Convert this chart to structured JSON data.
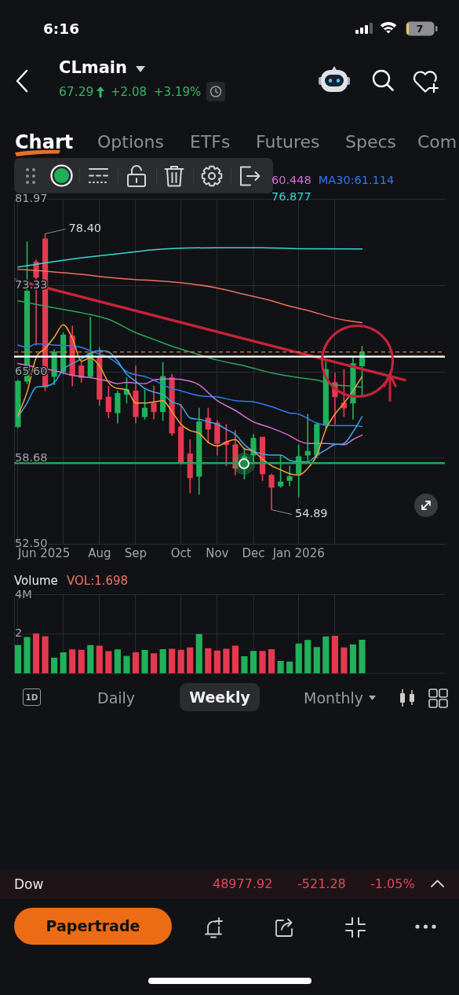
{
  "chart_data": [
    {
      "type": "candlestick",
      "title": "CLmain",
      "annotations": [
        "6:16",
        "7",
        "67.29",
        "+2.08",
        "+3.19%",
        "Chart",
        "Options",
        "ETFs",
        "Futures",
        "Specs",
        "Com",
        {
          "text": "78.40",
          "x": "2025-06-23",
          "y": 78.4
        },
        {
          "text": "54.89",
          "x": "2025-12-15",
          "y": 54.89
        }
      ],
      "x": [
        "2025-06-02",
        "2025-06-09",
        "2025-06-16",
        "2025-06-23",
        "2025-06-30",
        "2025-07-07",
        "2025-07-14",
        "2025-07-21",
        "2025-07-28",
        "2025-08-04",
        "2025-08-11",
        "2025-08-18",
        "2025-08-25",
        "2025-09-01",
        "2025-09-08",
        "2025-09-15",
        "2025-09-22",
        "2025-09-29",
        "2025-10-06",
        "2025-10-13",
        "2025-10-20",
        "2025-10-27",
        "2025-11-03",
        "2025-11-10",
        "2025-11-17",
        "2025-11-24",
        "2025-12-01",
        "2025-12-08",
        "2025-12-15",
        "2025-12-22",
        "2025-12-29",
        "2026-01-05",
        "2026-01-12",
        "2026-01-19",
        "2026-01-26",
        "2026-02-02",
        "2026-02-09",
        "2026-02-16",
        "2026-02-23"
      ],
      "ohlc": [
        [
          61.1,
          64.9,
          61.0,
          64.8
        ],
        [
          64.8,
          77.6,
          64.6,
          72.8
        ],
        [
          75.6,
          75.8,
          67.9,
          74.1
        ],
        [
          77.9,
          78.4,
          64.0,
          64.3
        ],
        [
          65.2,
          67.5,
          64.5,
          67.3
        ],
        [
          65.6,
          69.0,
          65.4,
          68.8
        ],
        [
          68.7,
          69.6,
          64.4,
          65.3
        ],
        [
          66.1,
          66.5,
          64.7,
          65.1
        ],
        [
          65.2,
          70.4,
          65.1,
          67.2
        ],
        [
          66.9,
          67.7,
          62.8,
          63.3
        ],
        [
          63.5,
          64.4,
          61.8,
          62.3
        ],
        [
          62.2,
          64.0,
          61.4,
          63.8
        ],
        [
          63.7,
          65.1,
          63.0,
          64.1
        ],
        [
          64.0,
          66.1,
          61.4,
          61.9
        ],
        [
          61.9,
          64.1,
          61.7,
          62.6
        ],
        [
          63.0,
          64.4,
          61.7,
          62.3
        ],
        [
          62.3,
          66.4,
          61.6,
          65.2
        ],
        [
          65.1,
          65.4,
          60.4,
          60.6
        ],
        [
          61.1,
          62.9,
          58.2,
          58.3
        ],
        [
          59.0,
          60.1,
          56.1,
          57.2
        ],
        [
          57.3,
          62.6,
          56.0,
          61.5
        ],
        [
          61.8,
          62.6,
          59.8,
          60.9
        ],
        [
          61.4,
          61.6,
          58.9,
          59.8
        ],
        [
          59.9,
          61.3,
          58.1,
          59.7
        ],
        [
          59.7,
          60.8,
          57.4,
          57.9
        ],
        [
          57.9,
          59.4,
          57.1,
          58.8
        ],
        [
          58.9,
          60.5,
          58.3,
          60.2
        ],
        [
          60.3,
          60.3,
          57.0,
          57.5
        ],
        [
          57.4,
          57.5,
          54.89,
          56.5
        ],
        [
          56.6,
          58.9,
          56.5,
          56.9
        ],
        [
          57.0,
          58.1,
          56.6,
          57.3
        ],
        [
          57.5,
          59.7,
          55.8,
          58.8
        ],
        [
          58.9,
          62.1,
          58.5,
          59.2
        ],
        [
          58.9,
          61.4,
          58.7,
          61.3
        ],
        [
          61.2,
          66.5,
          60.9,
          65.8
        ],
        [
          64.7,
          65.5,
          61.3,
          63.5
        ],
        [
          63.0,
          65.8,
          61.9,
          62.6
        ],
        [
          63.0,
          66.8,
          61.7,
          66.3
        ],
        [
          66.1,
          67.8,
          63.6,
          67.29
        ]
      ],
      "colors": [
        "#20b15a",
        "#20b15a",
        "#e63950",
        "#e63950",
        "#20b15a",
        "#20b15a",
        "#e63950",
        "#e63950",
        "#20b15a",
        "#e63950",
        "#e63950",
        "#20b15a",
        "#20b15a",
        "#e63950",
        "#20b15a",
        "#e63950",
        "#20b15a",
        "#e63950",
        "#e63950",
        "#e63950",
        "#20b15a",
        "#e63950",
        "#e63950",
        "#e63950",
        "#e63950",
        "#20b15a",
        "#20b15a",
        "#e63950",
        "#e63950",
        "#20b15a",
        "#20b15a",
        "#20b15a",
        "#20b15a",
        "#20b15a",
        "#20b15a",
        "#e63950",
        "#e63950",
        "#20b15a",
        "#20b15a"
      ],
      "series": [
        {
          "type": "line",
          "color": "#f5a03a",
          "values": [
            62.0,
            63.9,
            66.8,
            67.6,
            68.6,
            69.7,
            68.5,
            66.5,
            66.8,
            66.1,
            64.7,
            64.2,
            64.1,
            63.0,
            63.0,
            63.1,
            63.2,
            62.3,
            61.3,
            60.8,
            60.6,
            59.9,
            59.6,
            59.9,
            60.1,
            59.4,
            59.2,
            58.6,
            58.1,
            57.8,
            57.5,
            57.4,
            57.9,
            58.9,
            60.9,
            62.1,
            63.0,
            64.0,
            65.2
          ]
        },
        {
          "type": "line",
          "color": "#38a8e8",
          "values": [
            61.9,
            63.0,
            64.3,
            64.4,
            64.7,
            65.8,
            66.3,
            66.7,
            67.2,
            67.4,
            67.3,
            66.5,
            65.4,
            64.8,
            64.2,
            63.9,
            63.7,
            63.1,
            62.8,
            61.8,
            61.7,
            61.5,
            61.3,
            60.9,
            60.5,
            59.7,
            59.2,
            59.0,
            58.9,
            58.9,
            58.5,
            58.4,
            58.4,
            58.9,
            59.3,
            59.7,
            59.8,
            60.7,
            61.9
          ]
        },
        {
          "type": "line",
          "name": "60.448",
          "color": "#d26fd6",
          "x": [
            "2025-06-02",
            "2025-06-16",
            "2025-06-30",
            "2025-07-14",
            "2025-07-28",
            "2025-08-11",
            "2025-08-18",
            "2025-08-25",
            "2025-09-08",
            "2025-09-15",
            "2025-09-29",
            "2025-10-13",
            "2025-10-20",
            "2025-11-03",
            "2025-11-17",
            "2025-12-01",
            "2025-12-15",
            "2025-12-29",
            "2026-01-05",
            "2026-01-12",
            "2026-01-26",
            "2026-02-09",
            "2026-02-16",
            "2026-02-23"
          ],
          "values": [
            66.3,
            66.0,
            65.7,
            65.3,
            65.1,
            64.8,
            64.6,
            64.7,
            64.6,
            64.9,
            65.0,
            64.8,
            64.5,
            63.2,
            62.4,
            61.5,
            61.0,
            60.4,
            60.0,
            59.8,
            59.8,
            59.7,
            60.1,
            60.448
          ]
        },
        {
          "type": "line",
          "name": "MA30:61.114",
          "color": "#2f7bf0",
          "x": [
            "2025-06-02",
            "2025-06-09",
            "2025-06-16",
            "2025-06-30",
            "2025-07-21",
            "2025-07-28",
            "2025-08-11",
            "2025-08-18",
            "2025-08-25",
            "2025-09-08",
            "2025-09-15",
            "2025-09-22",
            "2025-09-29",
            "2025-10-06",
            "2025-10-20",
            "2025-11-03",
            "2025-11-17",
            "2025-12-01",
            "2025-12-15",
            "2025-12-29",
            "2026-01-05",
            "2026-01-19",
            "2026-02-02",
            "2026-02-16",
            "2026-02-23"
          ],
          "values": [
            67.9,
            67.7,
            68.0,
            67.9,
            67.7,
            67.4,
            66.8,
            66.3,
            65.6,
            65.2,
            64.9,
            64.5,
            64.2,
            64.0,
            63.6,
            63.5,
            63.2,
            63.1,
            62.7,
            62.2,
            62.1,
            61.4,
            61.2,
            61.2,
            61.114
          ]
        },
        {
          "type": "line",
          "color": "#2aa55f",
          "x": [
            "2025-06-02",
            "2025-06-23",
            "2025-07-21",
            "2025-08-11",
            "2025-09-01",
            "2025-09-15",
            "2025-09-29",
            "2025-10-13",
            "2025-11-03",
            "2025-11-24",
            "2025-12-15",
            "2026-01-05",
            "2026-01-19",
            "2026-02-02",
            "2026-02-16",
            "2026-02-23"
          ],
          "values": [
            71.9,
            71.4,
            70.8,
            70.2,
            69.0,
            68.4,
            67.8,
            67.3,
            66.6,
            66.1,
            65.5,
            65.1,
            64.9,
            64.5,
            64.4,
            64.3
          ]
        },
        {
          "type": "line",
          "color": "#ee6f5e",
          "x": [
            "2025-06-02",
            "2025-06-23",
            "2025-07-21",
            "2025-08-11",
            "2025-09-01",
            "2025-09-15",
            "2025-10-06",
            "2025-11-03",
            "2025-11-24",
            "2025-12-15",
            "2025-12-29",
            "2026-01-12",
            "2026-02-02",
            "2026-02-16",
            "2026-02-23"
          ],
          "values": [
            74.9,
            74.7,
            74.4,
            74.1,
            73.9,
            73.8,
            73.6,
            73.1,
            72.5,
            71.9,
            71.4,
            71.0,
            70.3,
            70.0,
            69.9
          ]
        },
        {
          "type": "line",
          "name": "76.877",
          "color": "#3ad6d6",
          "x": [
            "2025-06-02",
            "2025-06-23",
            "2025-07-21",
            "2025-08-11",
            "2025-09-01",
            "2025-09-15",
            "2025-11-03",
            "2025-12-08",
            "2026-01-05",
            "2026-02-23"
          ],
          "values": [
            75.1,
            75.5,
            76.0,
            76.3,
            76.6,
            76.8,
            77.0,
            77.0,
            76.9,
            76.877
          ]
        },
        {
          "type": "line",
          "color": "#c8233c",
          "x": [
            "2025-05-30",
            "2026-03-28"
          ],
          "values": [
            73.9,
            64.9
          ]
        }
      ],
      "xlim": [
        "2025-05-30",
        "2026-04-28"
      ],
      "xticks": [
        {
          "value": "2025-06-02",
          "label": "Jun 2025"
        },
        {
          "value": "2025-07-07",
          "label": null
        },
        {
          "value": "2025-08-04",
          "label": "Aug"
        },
        {
          "value": "2025-09-01",
          "label": "Sep"
        },
        {
          "value": "2025-10-06",
          "label": "Oct"
        },
        {
          "value": "2025-11-03",
          "label": "Nov"
        },
        {
          "value": "2025-12-01",
          "label": "Dec"
        },
        {
          "value": "2026-01-05",
          "label": "Jan 2026"
        },
        {
          "value": "2026-02-02",
          "label": null
        }
      ],
      "ylim": [
        52.5,
        81.97
      ],
      "yticks": [
        {
          "value": 52.5,
          "label": "52.50"
        },
        58.68,
        {
          "value": 65.6,
          "label": "65.60"
        },
        73.33,
        81.97
      ],
      "log": true,
      "grid": true,
      "legend": "top",
      "ref_lines": [
        {
          "axis": "y",
          "value": 67.29,
          "color": "#e07b39",
          "line_style": "dashed"
        },
        {
          "axis": "y",
          "value": 66.9,
          "color": "#f2f2f2"
        },
        {
          "axis": "y",
          "value": 58.3,
          "color": "#23a55a"
        }
      ]
    },
    {
      "type": "bar",
      "title": "Volume",
      "subtitle": "VOL:1.698",
      "annotations": [
        "1D",
        "Daily",
        "Weekly",
        "Monthly",
        "Dow",
        "48977.92",
        "-521.28",
        "-1.05%",
        "Papertrade"
      ],
      "x": [
        "2025-06-02",
        "2025-06-09",
        "2025-06-16",
        "2025-06-23",
        "2025-06-30",
        "2025-07-07",
        "2025-07-14",
        "2025-07-21",
        "2025-07-28",
        "2025-08-04",
        "2025-08-11",
        "2025-08-18",
        "2025-08-25",
        "2025-09-01",
        "2025-09-08",
        "2025-09-15",
        "2025-09-22",
        "2025-09-29",
        "2025-10-06",
        "2025-10-13",
        "2025-10-20",
        "2025-10-27",
        "2025-11-03",
        "2025-11-10",
        "2025-11-17",
        "2025-11-24",
        "2025-12-01",
        "2025-12-08",
        "2025-12-15",
        "2025-12-22",
        "2025-12-29",
        "2026-01-05",
        "2026-01-12",
        "2026-01-19",
        "2026-01-26",
        "2026-02-02",
        "2026-02-09",
        "2026-02-16",
        "2026-02-23"
      ],
      "values": [
        1.42,
        1.83,
        2.01,
        1.87,
        0.78,
        1.05,
        1.2,
        1.18,
        1.42,
        1.39,
        1.11,
        1.2,
        0.87,
        1.05,
        1.17,
        1.0,
        1.21,
        1.23,
        1.18,
        1.3,
        1.98,
        1.26,
        1.14,
        1.23,
        1.39,
        0.85,
        1.12,
        1.12,
        1.21,
        0.61,
        0.58,
        1.5,
        1.68,
        1.32,
        1.86,
        1.89,
        1.3,
        1.45,
        1.698
      ],
      "colors": [
        "#20b15a",
        "#20b15a",
        "#e63950",
        "#e63950",
        "#20b15a",
        "#20b15a",
        "#e63950",
        "#e63950",
        "#20b15a",
        "#e63950",
        "#e63950",
        "#20b15a",
        "#20b15a",
        "#e63950",
        "#20b15a",
        "#e63950",
        "#20b15a",
        "#e63950",
        "#e63950",
        "#e63950",
        "#20b15a",
        "#e63950",
        "#e63950",
        "#e63950",
        "#e63950",
        "#20b15a",
        "#20b15a",
        "#e63950",
        "#e63950",
        "#20b15a",
        "#20b15a",
        "#20b15a",
        "#20b15a",
        "#20b15a",
        "#20b15a",
        "#e63950",
        "#e63950",
        "#20b15a",
        "#20b15a"
      ],
      "xlim": [
        "2025-05-30",
        "2026-04-28"
      ],
      "xticks": [
        {
          "value": "2025-06-02",
          "label": null
        },
        {
          "value": "2025-07-07",
          "label": null
        },
        {
          "value": "2025-08-04",
          "label": null
        },
        {
          "value": "2025-09-01",
          "label": null
        },
        {
          "value": "2025-10-06",
          "label": null
        },
        {
          "value": "2025-11-03",
          "label": null
        },
        {
          "value": "2025-12-01",
          "label": null
        },
        {
          "value": "2026-01-05",
          "label": null
        },
        {
          "value": "2026-02-02",
          "label": null
        }
      ],
      "ylim": [
        0,
        4
      ],
      "yticks": [
        2,
        {
          "value": 4,
          "label": "4M"
        }
      ],
      "grid": true,
      "tick_labels": "y"
    }
  ]
}
